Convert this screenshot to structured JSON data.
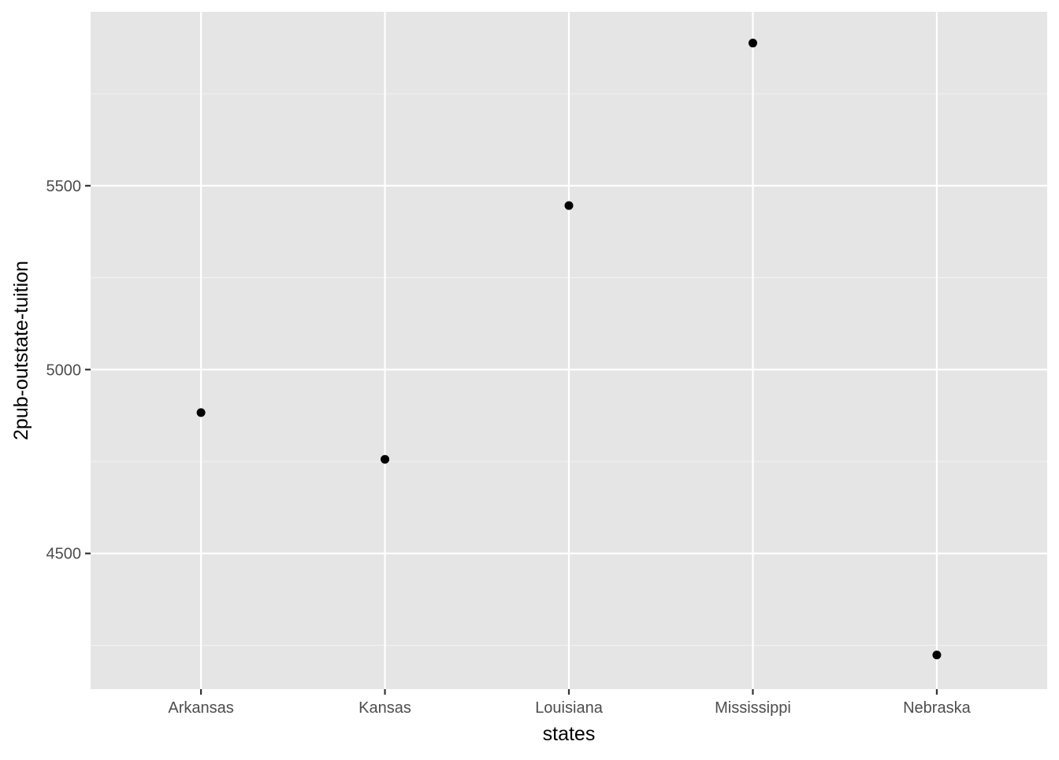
{
  "chart_data": {
    "type": "scatter",
    "title": "",
    "xlabel": "states",
    "ylabel": "2pub-outstate-tuition",
    "categories": [
      "Arkansas",
      "Kansas",
      "Louisiana",
      "Mississippi",
      "Nebraska"
    ],
    "values": [
      4883,
      4756,
      5446,
      5888,
      4224
    ],
    "ylim": [
      4131,
      5973
    ],
    "y_ticks": [
      4500,
      5000,
      5500
    ],
    "y_minor_ticks": [
      4250,
      4750,
      5250,
      5750
    ],
    "grid": true,
    "legend": "none",
    "colors": {
      "panel_background": "#e5e5e5",
      "grid_major": "#ffffff",
      "grid_minor": "#f2f2f2",
      "point": "#000000",
      "tick_mark": "#333333",
      "tick_label": "#4d4d4d",
      "axis_title": "#000000"
    }
  }
}
